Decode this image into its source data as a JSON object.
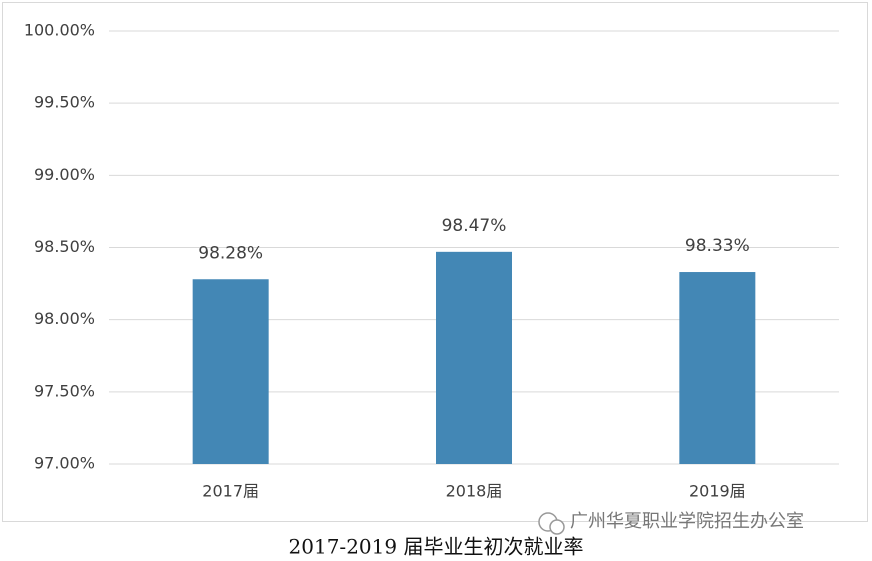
{
  "chart_data": {
    "type": "bar",
    "title": "2017-2019 届毕业生初次就业率",
    "watermark": "广州华夏职业学院招生办公室",
    "categories": [
      "2017届",
      "2018届",
      "2019届"
    ],
    "values": [
      98.28,
      98.47,
      98.33
    ],
    "value_labels": [
      "98.28%",
      "98.47%",
      "98.33%"
    ],
    "color": "#4387b5",
    "ylim": [
      97,
      100
    ],
    "yticks": [
      {
        "value": 97,
        "label": "97.00%"
      },
      {
        "value": 97.5,
        "label": "97.50%"
      },
      {
        "value": 98,
        "label": "98.00%"
      },
      {
        "value": 98.5,
        "label": "98.50%"
      },
      {
        "value": 99,
        "label": "99.00%"
      },
      {
        "value": 99.5,
        "label": "99.50%"
      },
      {
        "value": 100,
        "label": "100.00%"
      }
    ],
    "grid": true
  }
}
